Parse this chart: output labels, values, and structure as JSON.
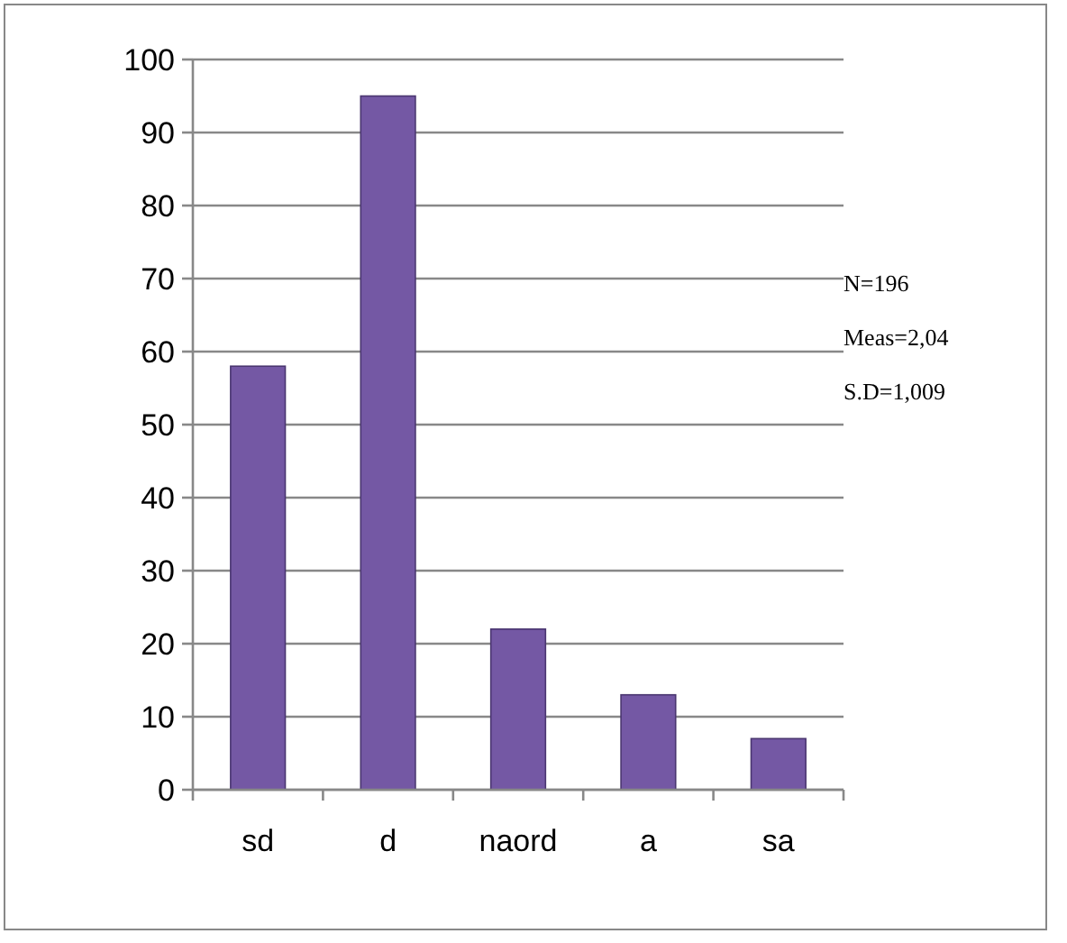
{
  "chart_data": {
    "type": "bar",
    "categories": [
      "sd",
      "d",
      "naord",
      "a",
      "sa"
    ],
    "values": [
      58,
      95,
      22,
      13,
      7
    ],
    "color": "#7458a4",
    "ylim": [
      0,
      100
    ],
    "yticks": [
      0,
      10,
      20,
      30,
      40,
      50,
      60,
      70,
      80,
      90,
      100
    ],
    "grid": "y",
    "annotations": [
      "N=196",
      "Meas=2,04",
      "S.D=1,009"
    ]
  }
}
